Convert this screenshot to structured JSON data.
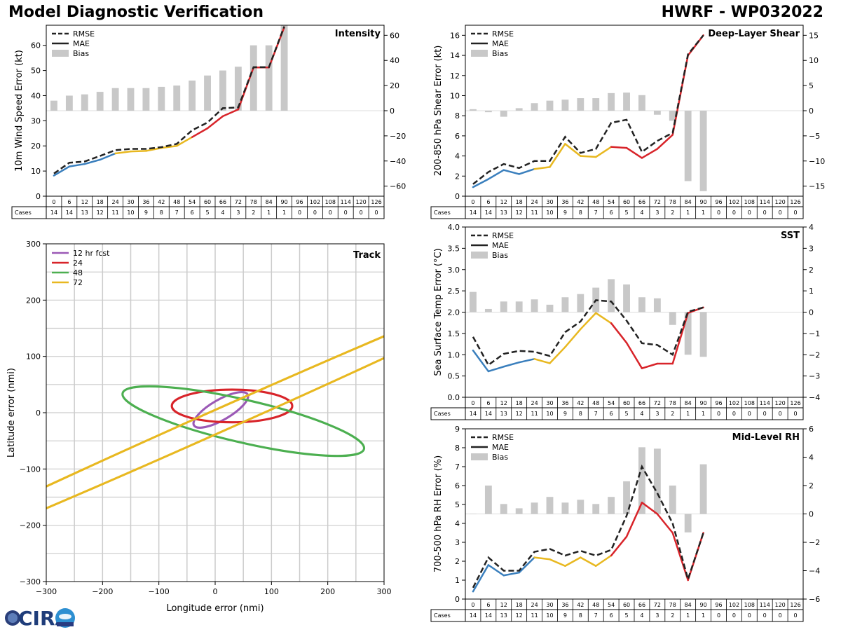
{
  "title_left": "Model Diagnostic Verification",
  "title_right": "HWRF - WP032022",
  "logo_text": "CIRA",
  "colors": {
    "rmse": "#222222",
    "bias": "#c8c8c8",
    "grid": "#cccccc",
    "seg_0_18": "#3a7fbd",
    "seg_24_48": "#e8b820",
    "seg_54_plus": "#d8242a",
    "fcst12": "#9b59b6",
    "fcst24": "#d8242a",
    "fcst48": "#4caf50",
    "fcst72": "#e8b820"
  },
  "table": {
    "hours": [
      "0",
      "6",
      "12",
      "18",
      "24",
      "30",
      "36",
      "42",
      "48",
      "54",
      "60",
      "66",
      "72",
      "78",
      "84",
      "90",
      "96",
      "102",
      "108",
      "114",
      "120",
      "126"
    ],
    "cases_label": "Cases"
  },
  "chart_data": [
    {
      "id": "intensity",
      "type": "line",
      "title": "Intensity",
      "ylabel": "10m Wind Speed Error (kt)",
      "ylim": [
        0,
        68
      ],
      "yticks": [
        0,
        10,
        20,
        30,
        40,
        50,
        60
      ],
      "y2lim": [
        -68,
        68
      ],
      "y2ticks": [
        -60,
        -40,
        -20,
        0,
        20,
        40,
        60
      ],
      "x": [
        0,
        6,
        12,
        18,
        24,
        30,
        36,
        42,
        48,
        54,
        60,
        66,
        72,
        78,
        84,
        90
      ],
      "rmse": [
        9,
        13.3,
        13.8,
        16,
        18.3,
        18.8,
        18.8,
        19.5,
        20.8,
        26.2,
        29.3,
        35,
        35.3,
        51.3,
        51.3,
        67.5
      ],
      "mae": [
        8.2,
        11.8,
        12.8,
        14.5,
        17,
        17.8,
        18,
        19.2,
        20,
        23.5,
        27,
        31.8,
        34.5,
        51.2,
        51.2,
        67.2
      ],
      "bias": [
        8,
        12,
        13,
        15,
        18,
        18,
        18,
        19,
        20,
        24,
        28,
        32,
        35,
        52,
        52,
        68
      ],
      "cases": [
        "14",
        "14",
        "13",
        "12",
        "11",
        "10",
        "9",
        "8",
        "7",
        "6",
        "5",
        "4",
        "3",
        "2",
        "1",
        "1",
        "0",
        "0",
        "0",
        "0",
        "0",
        "0"
      ],
      "legend": [
        "RMSE",
        "MAE",
        "Bias"
      ]
    },
    {
      "id": "shear",
      "type": "line",
      "title": "Deep-Layer Shear",
      "ylabel": "200-850 hPa Shear Error (kt)",
      "ylim": [
        0,
        17
      ],
      "yticks": [
        0,
        2,
        4,
        6,
        8,
        10,
        12,
        14,
        16
      ],
      "y2lim": [
        -17,
        17
      ],
      "y2ticks": [
        -15,
        -10,
        -5,
        0,
        5,
        10,
        15
      ],
      "x": [
        0,
        6,
        12,
        18,
        24,
        30,
        36,
        42,
        48,
        54,
        60,
        66,
        72,
        78,
        84,
        90
      ],
      "rmse": [
        1.2,
        2.4,
        3.2,
        2.8,
        3.5,
        3.5,
        5.9,
        4.3,
        4.7,
        7.3,
        7.6,
        4.4,
        5.5,
        6.3,
        14.1,
        16
      ],
      "mae": [
        0.9,
        1.7,
        2.6,
        2.2,
        2.7,
        2.9,
        5.2,
        4,
        3.9,
        4.9,
        4.8,
        3.8,
        4.7,
        6.1,
        14,
        16
      ],
      "bias": [
        0.3,
        -0.3,
        -1.2,
        0.5,
        1.5,
        2,
        2.2,
        2.5,
        2.5,
        3.5,
        3.6,
        3.1,
        -0.8,
        -2,
        -14,
        -16
      ],
      "cases": [
        "14",
        "14",
        "13",
        "12",
        "11",
        "10",
        "9",
        "8",
        "7",
        "6",
        "5",
        "4",
        "3",
        "2",
        "1",
        "1",
        "0",
        "0",
        "0",
        "0",
        "0",
        "0"
      ],
      "legend": [
        "RMSE",
        "MAE",
        "Bias"
      ]
    },
    {
      "id": "sst",
      "type": "line",
      "title": "SST",
      "ylabel": "Sea Surface Temp Error (°C)",
      "ylim": [
        0,
        4
      ],
      "yticks": [
        "0.0",
        "0.5",
        "1.0",
        "1.5",
        "2.0",
        "2.5",
        "3.0",
        "3.5",
        "4.0"
      ],
      "y2lim": [
        -4,
        4
      ],
      "y2ticks": [
        -4,
        -3,
        -2,
        -1,
        0,
        1,
        2,
        3,
        4
      ],
      "x": [
        0,
        6,
        12,
        18,
        24,
        30,
        36,
        42,
        48,
        54,
        60,
        66,
        72,
        78,
        84,
        90
      ],
      "rmse": [
        1.42,
        0.76,
        1.02,
        1.09,
        1.07,
        0.97,
        1.53,
        1.78,
        2.28,
        2.25,
        1.8,
        1.27,
        1.23,
        1,
        2.01,
        2.11
      ],
      "mae": [
        1.1,
        0.61,
        0.72,
        0.82,
        0.9,
        0.8,
        1.18,
        1.6,
        1.98,
        1.74,
        1.28,
        0.68,
        0.79,
        0.79,
        1.98,
        2.11
      ],
      "bias": [
        0.95,
        0.15,
        0.5,
        0.5,
        0.6,
        0.35,
        0.7,
        0.85,
        1.15,
        1.55,
        1.3,
        0.7,
        0.65,
        -0.6,
        -2,
        -2.1
      ],
      "cases": [
        "14",
        "14",
        "13",
        "12",
        "11",
        "10",
        "9",
        "8",
        "7",
        "6",
        "5",
        "4",
        "3",
        "2",
        "1",
        "1",
        "0",
        "0",
        "0",
        "0",
        "0",
        "0"
      ],
      "legend": [
        "RMSE",
        "MAE",
        "Bias"
      ]
    },
    {
      "id": "rh",
      "type": "line",
      "title": "Mid-Level RH",
      "ylabel": "700-500 hPa RH Error (%)",
      "ylim": [
        0,
        9
      ],
      "yticks": [
        0,
        1,
        2,
        3,
        4,
        5,
        6,
        7,
        8,
        9
      ],
      "y2lim": [
        -6,
        6
      ],
      "y2ticks": [
        -6,
        -4,
        -2,
        0,
        2,
        4,
        6
      ],
      "x": [
        0,
        6,
        12,
        18,
        24,
        30,
        36,
        42,
        48,
        54,
        60,
        66,
        72,
        78,
        84,
        90
      ],
      "rmse": [
        0.6,
        2.2,
        1.5,
        1.5,
        2.5,
        2.65,
        2.3,
        2.55,
        2.3,
        2.6,
        4.4,
        7,
        5.6,
        4,
        1.05,
        3.5
      ],
      "mae": [
        0.4,
        1.8,
        1.25,
        1.4,
        2.2,
        2.1,
        1.75,
        2.2,
        1.75,
        2.3,
        3.3,
        5.1,
        4.5,
        3.5,
        1,
        3.5
      ],
      "bias": [
        0,
        2,
        0.7,
        0.4,
        0.8,
        1.2,
        0.8,
        1,
        0.7,
        1.2,
        2.3,
        4.7,
        4.6,
        2,
        -1.3,
        3.5
      ],
      "cases": [
        "14",
        "14",
        "13",
        "12",
        "11",
        "10",
        "9",
        "8",
        "7",
        "6",
        "5",
        "4",
        "3",
        "2",
        "1",
        "1",
        "0",
        "0",
        "0",
        "0",
        "0",
        "0"
      ],
      "legend": [
        "RMSE",
        "MAE",
        "Bias"
      ]
    },
    {
      "id": "track",
      "type": "scatter",
      "title": "Track",
      "xlabel": "Longitude error (nmi)",
      "ylabel": "Latitude error (nmi)",
      "xlim": [
        -300,
        300
      ],
      "ylim": [
        -300,
        300
      ],
      "xticks": [
        "−300",
        "−200",
        "−100",
        "0",
        "100",
        "200",
        "300"
      ],
      "yticks": [
        "−300",
        "−200",
        "−100",
        "0",
        "100",
        "200",
        "300"
      ],
      "legend": [
        "12 hr fcst",
        "24",
        "48",
        "72"
      ],
      "ellipses": [
        {
          "label": "12 hr fcst",
          "cx": 10,
          "cy": 5,
          "a": 55,
          "b": 18,
          "angle": 30
        },
        {
          "label": "24",
          "cx": 30,
          "cy": 12,
          "a": 107,
          "b": 29,
          "angle": 0
        },
        {
          "label": "48",
          "cx": 50,
          "cy": -15,
          "a": 220,
          "b": 38,
          "angle": -13
        },
        {
          "label": "72",
          "cx": 0,
          "cy": -17,
          "a": 700,
          "b": 20,
          "angle": 24
        }
      ]
    }
  ]
}
